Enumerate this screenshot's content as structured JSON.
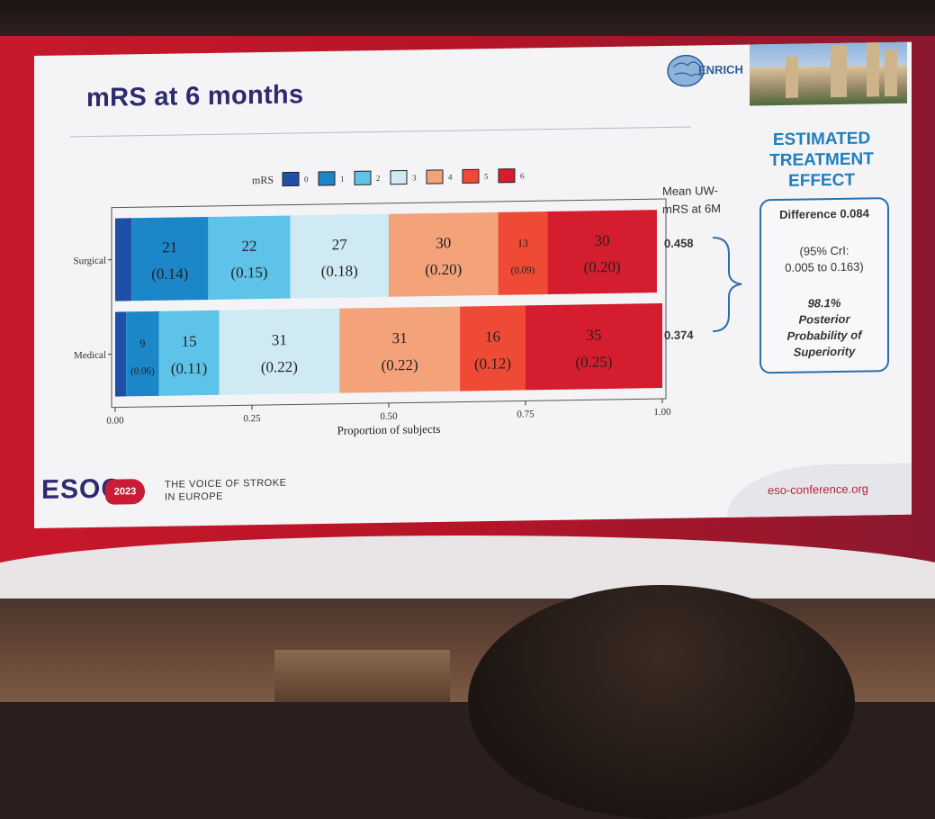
{
  "slide": {
    "title": "mRS at 6 months",
    "logo_text": "ENRICH",
    "estimated_effect_title": [
      "ESTIMATED",
      "TREATMENT",
      "EFFECT"
    ],
    "difference": "Difference 0.084",
    "ci": [
      "(95% CrI:",
      "0.005 to 0.163)"
    ],
    "posterior": [
      "98.1%",
      "Posterior",
      "Probability of",
      "Superiority"
    ],
    "mean_header": [
      "Mean  UW-",
      "mRS at 6M"
    ],
    "mean_surgical": "0.458",
    "mean_medical": "0.374",
    "esoc": "ESOC",
    "esoc_year": "2023",
    "voice": [
      "THE VOICE OF STROKE",
      "IN EUROPE"
    ],
    "url": "eso-conference.org"
  },
  "colors": {
    "mrs0": "#1f4fa6",
    "mrs1": "#1b86c8",
    "mrs2": "#5ec3e8",
    "mrs3": "#cfeaf2",
    "mrs4": "#f4a27a",
    "mrs5": "#ef4a36",
    "mrs6": "#d41d2e",
    "title": "#2d2a6e",
    "accent": "#1f7fbd",
    "brand_red": "#c81d35"
  },
  "chart_data": {
    "type": "bar",
    "orientation": "horizontal-stacked",
    "xlabel": "Proportion of subjects",
    "xlim": [
      0,
      1
    ],
    "xticks": [
      "0.00",
      "0.25",
      "0.50",
      "0.75",
      "1.00"
    ],
    "legend_title": "mRS",
    "categories": [
      "0",
      "1",
      "2",
      "3",
      "4",
      "5",
      "6"
    ],
    "groups": [
      {
        "name": "Surgical",
        "counts": [
          null,
          21,
          22,
          27,
          30,
          13,
          30
        ],
        "proportions": [
          0.03,
          0.14,
          0.15,
          0.18,
          0.2,
          0.09,
          0.2
        ],
        "labels": [
          "",
          "0.14",
          "0.15",
          "0.18",
          "0.20",
          "0.09",
          "0.20"
        ]
      },
      {
        "name": "Medical",
        "counts": [
          null,
          9,
          15,
          31,
          31,
          16,
          35
        ],
        "proportions": [
          0.02,
          0.06,
          0.11,
          0.22,
          0.22,
          0.12,
          0.25
        ],
        "labels": [
          "",
          "0.06",
          "0.11",
          "0.22",
          "0.22",
          "0.12",
          "0.25"
        ]
      }
    ]
  }
}
